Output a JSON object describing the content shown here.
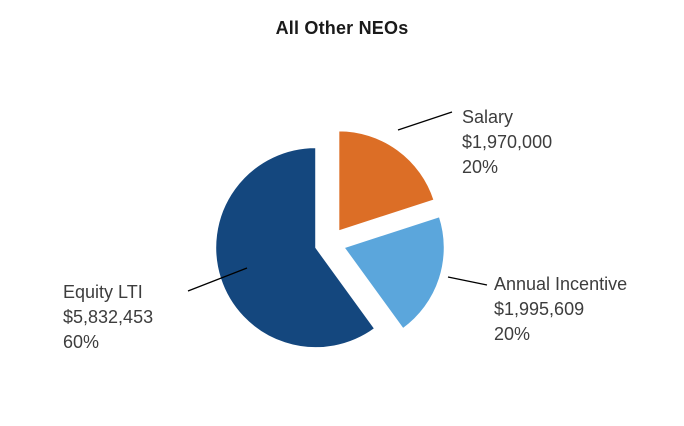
{
  "title": "All Other NEOs",
  "chart_data": {
    "type": "pie",
    "title": "All Other NEOs",
    "start_angle_deg": 0,
    "direction": "clockwise",
    "exploded": true,
    "legend_position": "none",
    "slices": [
      {
        "label": "Salary",
        "value": 1970000,
        "value_text": "$1,970,000",
        "pct": 20,
        "pct_text": "20%",
        "color": "#DC6E26"
      },
      {
        "label": "Annual Incentive",
        "value": 1995609,
        "value_text": "$1,995,609",
        "pct": 20,
        "pct_text": "20%",
        "color": "#5BA6DC"
      },
      {
        "label": "Equity LTI",
        "value": 5832453,
        "value_text": "$5,832,453",
        "pct": 60,
        "pct_text": "60%",
        "color": "#14477E"
      }
    ]
  }
}
